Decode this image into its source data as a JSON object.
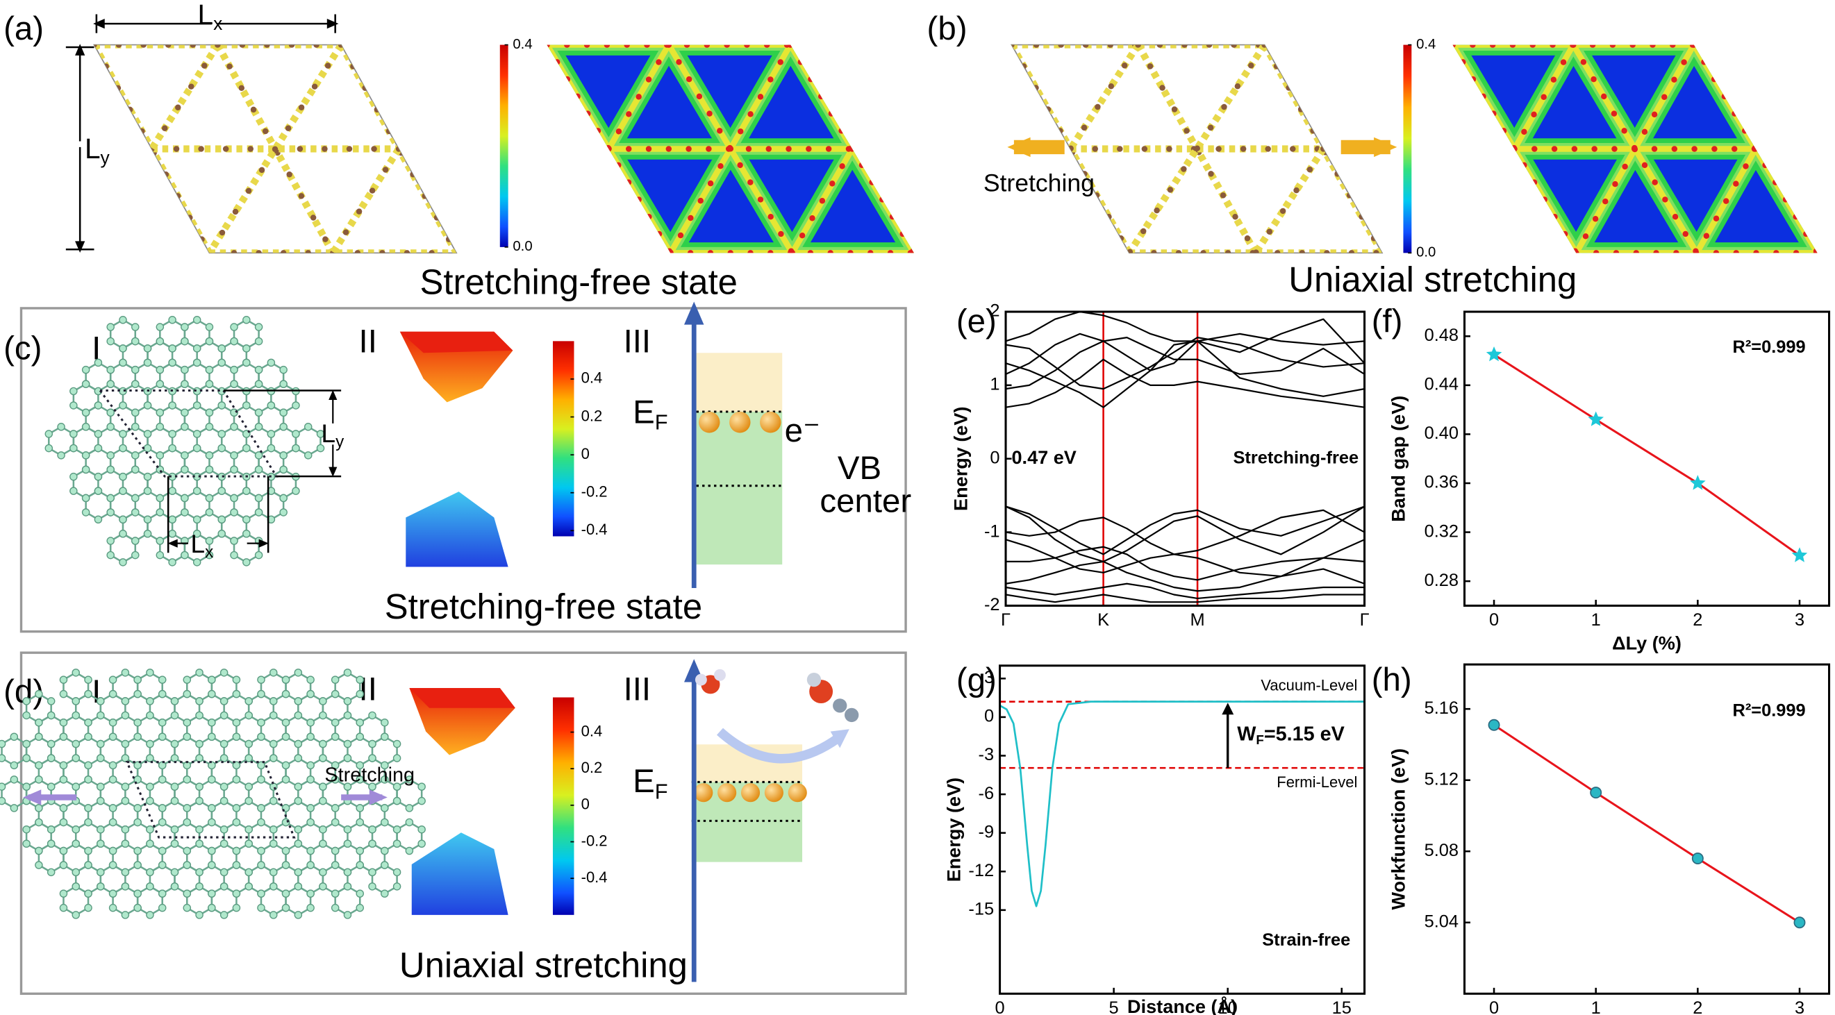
{
  "figure": {
    "a": {
      "label": "(a)",
      "lx": [
        "L",
        "x"
      ],
      "ly": [
        "L",
        "y"
      ],
      "colorbar": {
        "lim": [
          0,
          0.4
        ],
        "ticks": [
          0.4,
          {
            "value": 0,
            "label": "0.0"
          }
        ]
      },
      "caption": "Stretching-free state"
    },
    "b": {
      "label": "(b)",
      "arrow_text": "Stretching",
      "colorbar": {
        "lim": [
          0,
          0.4
        ],
        "ticks": [
          0.4,
          {
            "value": 0,
            "label": "0.0"
          }
        ]
      },
      "caption": "Uniaxial stretching"
    },
    "c": {
      "label": "(c)",
      "parts": [
        "I",
        "II",
        "III"
      ],
      "lx": [
        "L",
        "x"
      ],
      "ly": [
        "L",
        "y"
      ],
      "colorbar": {
        "lim": [
          -0.43,
          0.6
        ],
        "ticks": [
          0.4,
          0.2,
          0,
          -0.2,
          -0.4
        ]
      },
      "ef": [
        "E",
        "F"
      ],
      "electron": "e⁻",
      "vb": [
        "VB",
        "center"
      ],
      "caption": "Stretching-free state"
    },
    "d": {
      "label": "(d)",
      "parts": [
        "I",
        "II",
        "III"
      ],
      "arrow_text": "Stretching",
      "colorbar": {
        "lim": [
          -0.6,
          0.59
        ],
        "ticks": [
          0.4,
          0.2,
          0,
          -0.2,
          -0.4
        ]
      },
      "ef": [
        "E",
        "F"
      ],
      "caption": "Uniaxial stretching"
    }
  },
  "chart_data": [
    {
      "panel": "(e)",
      "type": "line",
      "ylabel": "Energy (eV)",
      "x": [
        0,
        0.2,
        0.42,
        0.63,
        0.83,
        1.03,
        1.23,
        1.43,
        1.63,
        1.99,
        2.34,
        2.7,
        3.05
      ],
      "xlim": [
        0,
        3.05
      ],
      "xticks": [
        {
          "value": 0,
          "label": "Γ"
        },
        {
          "value": 0.83,
          "label": "K"
        },
        {
          "value": 1.63,
          "label": "M"
        },
        {
          "value": 3.05,
          "label": "Γ"
        }
      ],
      "ylim": [
        -2,
        2
      ],
      "yticks": [
        -2,
        -1,
        0,
        1,
        2
      ],
      "vlines": [
        0.83,
        1.63
      ],
      "vline_color": "#e00000",
      "series": [
        {
          "color": "#000000",
          "values": [
            0.7,
            0.75,
            0.9,
            1.1,
            1.35,
            1.15,
            1.0,
            1.0,
            1.05,
            0.95,
            0.85,
            0.78,
            0.7
          ]
        },
        {
          "color": "#000000",
          "values": [
            0.95,
            1.0,
            1.2,
            1.45,
            1.6,
            1.4,
            1.2,
            1.3,
            1.6,
            1.1,
            0.95,
            0.85,
            0.95
          ]
        },
        {
          "color": "#000000",
          "values": [
            1.15,
            1.3,
            1.55,
            1.7,
            1.6,
            1.65,
            1.5,
            1.35,
            1.35,
            1.15,
            1.2,
            1.5,
            1.15
          ]
        },
        {
          "color": "#000000",
          "values": [
            1.55,
            1.5,
            1.25,
            1.0,
            0.95,
            1.1,
            1.25,
            1.45,
            1.65,
            1.55,
            1.35,
            1.25,
            1.3
          ]
        },
        {
          "color": "#000000",
          "values": [
            1.6,
            1.7,
            1.9,
            2.0,
            1.95,
            1.85,
            1.7,
            1.6,
            1.6,
            1.7,
            1.6,
            1.55,
            1.6
          ]
        },
        {
          "color": "#000000",
          "values": [
            1.3,
            1.2,
            1.05,
            0.9,
            0.7,
            0.95,
            1.2,
            1.55,
            1.6,
            1.45,
            1.7,
            1.9,
            1.3
          ]
        },
        {
          "color": "#000000",
          "values": [
            -0.65,
            -0.75,
            -0.95,
            -1.15,
            -1.3,
            -1.1,
            -0.9,
            -0.75,
            -0.7,
            -0.95,
            -1.05,
            -0.85,
            -0.65
          ]
        },
        {
          "color": "#000000",
          "values": [
            -0.65,
            -0.8,
            -1.1,
            -1.3,
            -1.4,
            -1.25,
            -1.05,
            -0.85,
            -0.78,
            -1.1,
            -1.3,
            -1.0,
            -0.65
          ]
        },
        {
          "color": "#000000",
          "values": [
            -1.0,
            -1.05,
            -1.0,
            -0.85,
            -0.8,
            -0.95,
            -1.15,
            -1.3,
            -1.25,
            -1.05,
            -0.8,
            -0.7,
            -1.0
          ]
        },
        {
          "color": "#000000",
          "values": [
            -1.1,
            -1.2,
            -1.35,
            -1.5,
            -1.55,
            -1.45,
            -1.35,
            -1.3,
            -1.35,
            -1.55,
            -1.6,
            -1.35,
            -1.1
          ]
        },
        {
          "color": "#000000",
          "values": [
            -1.4,
            -1.4,
            -1.35,
            -1.25,
            -1.2,
            -1.3,
            -1.5,
            -1.6,
            -1.65,
            -1.5,
            -1.4,
            -1.35,
            -1.4
          ]
        },
        {
          "color": "#000000",
          "values": [
            -1.7,
            -1.65,
            -1.55,
            -1.45,
            -1.4,
            -1.55,
            -1.65,
            -1.75,
            -1.8,
            -1.75,
            -1.6,
            -1.5,
            -1.7
          ]
        },
        {
          "color": "#000000",
          "values": [
            -1.75,
            -1.8,
            -1.85,
            -1.8,
            -1.75,
            -1.7,
            -1.75,
            -1.85,
            -1.9,
            -1.85,
            -1.8,
            -1.75,
            -1.75
          ]
        },
        {
          "color": "#000000",
          "values": [
            -1.85,
            -1.9,
            -1.95,
            -1.9,
            -1.85,
            -1.9,
            -1.95,
            -1.95,
            -1.95,
            -1.9,
            -1.9,
            -1.85,
            -1.85
          ]
        }
      ],
      "annotations": [
        {
          "text": "0.47 eV",
          "color": "#e00000"
        },
        {
          "text": "Stretching-free",
          "color": "#000000"
        }
      ]
    },
    {
      "panel": "(f)",
      "type": "scatter",
      "xlabel": "ΔLy (%)",
      "ylabel": "Band gap (eV)",
      "x": [
        0,
        1,
        2,
        3
      ],
      "series": [
        {
          "color": "#1ec8d8",
          "marker": "star",
          "line_color": "#e8141b",
          "values": [
            0.465,
            0.412,
            0.36,
            0.301
          ]
        }
      ],
      "xlim": [
        -0.29,
        3.29
      ],
      "xticks": [
        0,
        1,
        2,
        3
      ],
      "ylim": [
        0.26,
        0.5
      ],
      "yticks": [
        0.28,
        0.32,
        0.36,
        {
          "value": 0.4,
          "label": "0.40"
        },
        0.44,
        0.48
      ],
      "annotation": "R²=0.999"
    },
    {
      "panel": "(g)",
      "type": "line",
      "xlabel": "Distance (Å)",
      "ylabel": "Energy (eV)",
      "x": [
        0,
        0.3,
        0.6,
        0.9,
        1.2,
        1.4,
        1.6,
        1.8,
        2.0,
        2.3,
        2.6,
        3.0,
        4,
        8,
        12,
        16
      ],
      "series": [
        {
          "color": "#1fbfc8",
          "values": [
            0.9,
            0.6,
            -0.5,
            -4,
            -10,
            -13.5,
            -14.7,
            -13.5,
            -10,
            -4,
            -0.5,
            1.0,
            1.2,
            1.2,
            1.2,
            1.2
          ]
        }
      ],
      "xlim": [
        0,
        16
      ],
      "xticks": [
        0,
        5,
        10,
        15
      ],
      "ylim": [
        -21.5,
        4
      ],
      "yticks": [
        -15,
        -12,
        -9,
        -6,
        -3,
        0,
        3
      ],
      "hlines": [
        {
          "value": 1.2,
          "label": "Vacuum-Level"
        },
        {
          "value": -3.95,
          "label": "Fermi-Level"
        }
      ],
      "hline_color": "#e00000",
      "wf": [
        "W",
        "F",
        "=5.15 eV"
      ],
      "annotation": "Strain-free"
    },
    {
      "panel": "(h)",
      "type": "scatter",
      "xlabel": "ΔLy (%)",
      "ylabel": "Workfunction (eV)",
      "x": [
        0,
        1,
        2,
        3
      ],
      "series": [
        {
          "color": "#2ab7c4",
          "marker": "circle",
          "line_color": "#e8141b",
          "values": [
            5.151,
            5.113,
            5.076,
            5.04
          ]
        }
      ],
      "xlim": [
        -0.29,
        3.29
      ],
      "xticks": [
        0,
        1,
        2,
        3
      ],
      "ylim": [
        5.0,
        5.185
      ],
      "yticks": [
        5.04,
        5.08,
        5.12,
        5.16
      ],
      "annotation": "R²=0.999"
    }
  ]
}
